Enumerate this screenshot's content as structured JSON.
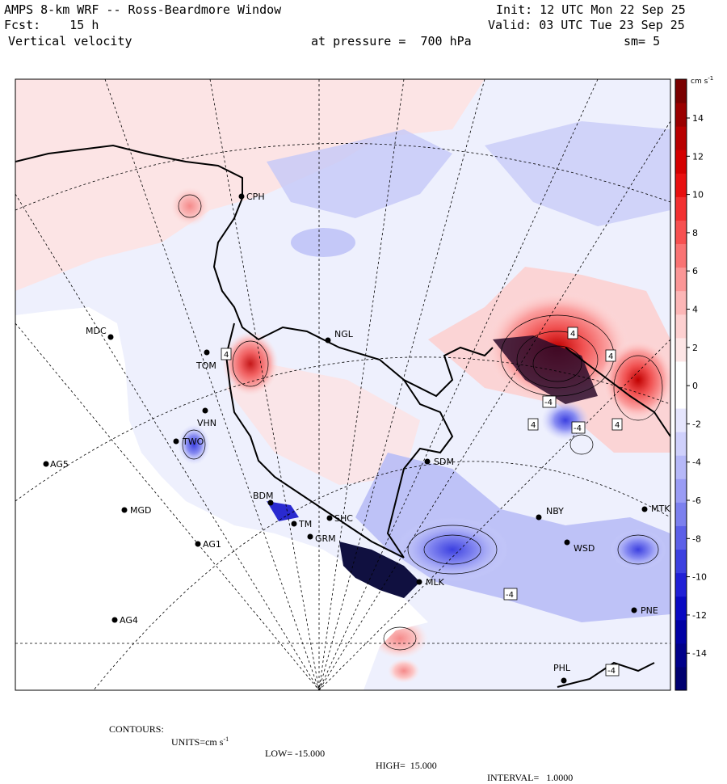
{
  "header": {
    "title": "AMPS 8-km WRF -- Ross-Beardmore Window",
    "fcst": "Fcst:    15 h",
    "field": "Vertical velocity",
    "init": "Init: 12 UTC Mon 22 Sep 25",
    "valid": "Valid: 03 UTC Tue 23 Sep 25",
    "pressure": "at pressure =  700 hPa",
    "smooth": "sm= 5"
  },
  "colorbar": {
    "units": "cm s",
    "units_sup": "-1",
    "ticks": [
      "14",
      "12",
      "10",
      "8",
      "6",
      "4",
      "2",
      "0",
      "-2",
      "-4",
      "-6",
      "-8",
      "-10",
      "-12",
      "-14"
    ],
    "colors": [
      "#7a0000",
      "#9a0000",
      "#b80000",
      "#d40000",
      "#e81010",
      "#f23030",
      "#f75050",
      "#f97373",
      "#fb9696",
      "#fcb6b6",
      "#fdd0d0",
      "#fde6e6",
      "#ffffff",
      "#ffffff",
      "#e6e6fd",
      "#cfd0fb",
      "#b6b8f8",
      "#9a9cf4",
      "#7c80ee",
      "#5c60e8",
      "#3c40e0",
      "#2020d6",
      "#0a0ac2",
      "#0000a4",
      "#00008a",
      "#000070"
    ]
  },
  "stations": [
    {
      "id": "CPH"
    },
    {
      "id": "MDC"
    },
    {
      "id": "NGL"
    },
    {
      "id": "TOM"
    },
    {
      "id": "VHN"
    },
    {
      "id": "TWO"
    },
    {
      "id": "AG5"
    },
    {
      "id": "SDM"
    },
    {
      "id": "MGD"
    },
    {
      "id": "NBY"
    },
    {
      "id": "MTK"
    },
    {
      "id": "AG1"
    },
    {
      "id": "WSD"
    },
    {
      "id": "GRM"
    },
    {
      "id": "SHC"
    },
    {
      "id": "MLK"
    },
    {
      "id": "PNE"
    },
    {
      "id": "AG4"
    },
    {
      "id": "PHL"
    },
    {
      "id": "BDM"
    },
    {
      "id": "TM"
    }
  ],
  "contour_labels": [
    "4",
    "4",
    "4",
    "4",
    "-4",
    "-4",
    "4",
    "-4",
    "-4"
  ],
  "footer": {
    "contours": "CONTOURS:",
    "units_label": "UNITS=cm s",
    "units_sup": "-1",
    "low": "LOW= -15.000",
    "high": "HIGH=  15.000",
    "interval": "INTERVAL=   1.0000"
  }
}
